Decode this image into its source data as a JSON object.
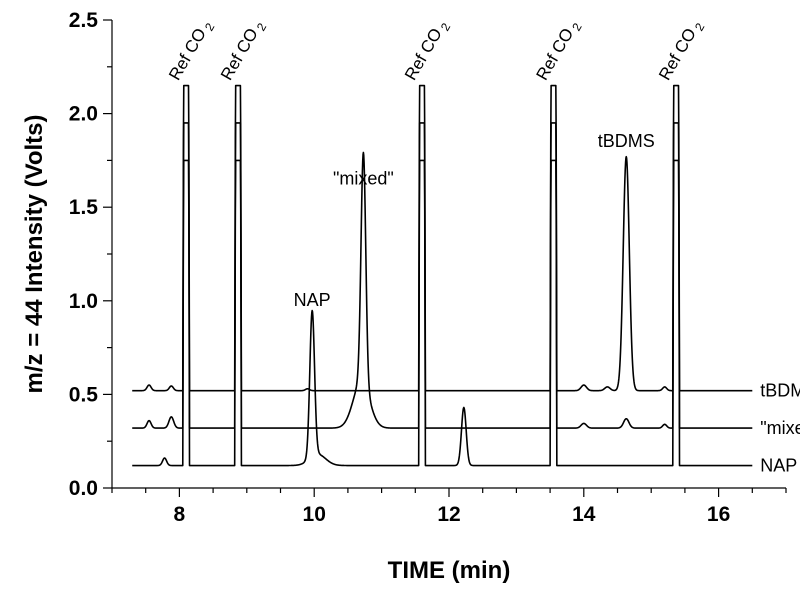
{
  "chart_data": {
    "type": "line",
    "title": "",
    "xlabel": "TIME (min)",
    "ylabel": "m/z = 44 Intensity (Volts)",
    "xlim": [
      7.0,
      17.0
    ],
    "ylim": [
      0.0,
      2.5
    ],
    "x_major_ticks": [
      8,
      10,
      12,
      14,
      16
    ],
    "x_minor_step": 0.5,
    "y_major_ticks": [
      0.0,
      0.5,
      1.0,
      1.5,
      2.0,
      2.5
    ],
    "y_minor_step": 0.25,
    "x_tick_labels": [
      "8",
      "10",
      "12",
      "14",
      "16"
    ],
    "y_tick_labels": [
      "0.0",
      "0.5",
      "1.0",
      "1.5",
      "2.0",
      "2.5"
    ],
    "ref_pulses": [
      {
        "start": 8.05,
        "end": 8.15
      },
      {
        "start": 8.82,
        "end": 8.92
      },
      {
        "start": 11.55,
        "end": 11.65
      },
      {
        "start": 13.5,
        "end": 13.6
      },
      {
        "start": 15.32,
        "end": 15.42
      }
    ],
    "ref_annotation": {
      "main": "Ref CO",
      "sub": "2"
    },
    "x_start": 7.3,
    "x_end": 16.5,
    "series": [
      {
        "name": "tBDMS",
        "baseline": 0.52,
        "ref_top": 2.15,
        "peaks": [
          {
            "x": 7.55,
            "height": 0.03,
            "width": 0.03
          },
          {
            "x": 7.88,
            "height": 0.025,
            "width": 0.03
          },
          {
            "x": 9.9,
            "height": 0.01,
            "width": 0.03
          },
          {
            "x": 14.0,
            "height": 0.03,
            "width": 0.04
          },
          {
            "x": 14.35,
            "height": 0.02,
            "width": 0.04
          },
          {
            "x": 14.63,
            "height": 1.25,
            "width": 0.045
          },
          {
            "x": 15.2,
            "height": 0.02,
            "width": 0.03
          }
        ]
      },
      {
        "name": "\"mixed\"",
        "baseline": 0.32,
        "ref_top": 1.95,
        "peaks": [
          {
            "x": 7.55,
            "height": 0.04,
            "width": 0.03
          },
          {
            "x": 7.88,
            "height": 0.06,
            "width": 0.035
          },
          {
            "x": 10.73,
            "height": 1.23,
            "width": 0.035
          },
          {
            "x": 10.7,
            "height": 0.25,
            "width": 0.12
          },
          {
            "x": 14.0,
            "height": 0.025,
            "width": 0.04
          },
          {
            "x": 14.63,
            "height": 0.05,
            "width": 0.04
          },
          {
            "x": 15.2,
            "height": 0.02,
            "width": 0.03
          }
        ]
      },
      {
        "name": "NAP",
        "baseline": 0.12,
        "ref_top": 1.75,
        "peaks": [
          {
            "x": 7.78,
            "height": 0.04,
            "width": 0.03
          },
          {
            "x": 9.97,
            "height": 0.78,
            "width": 0.035
          },
          {
            "x": 10.05,
            "height": 0.06,
            "width": 0.12
          },
          {
            "x": 12.22,
            "height": 0.31,
            "width": 0.035
          }
        ]
      }
    ],
    "peak_annotations": [
      {
        "text": "NAP",
        "x": 9.97,
        "y": 0.95
      },
      {
        "text": "\"mixed\"",
        "x": 10.73,
        "y": 1.6
      },
      {
        "text": "tBDMS",
        "x": 14.63,
        "y": 1.8
      }
    ],
    "trace_labels": [
      "tBDMS",
      "\"mixed\"",
      "NAP"
    ]
  }
}
